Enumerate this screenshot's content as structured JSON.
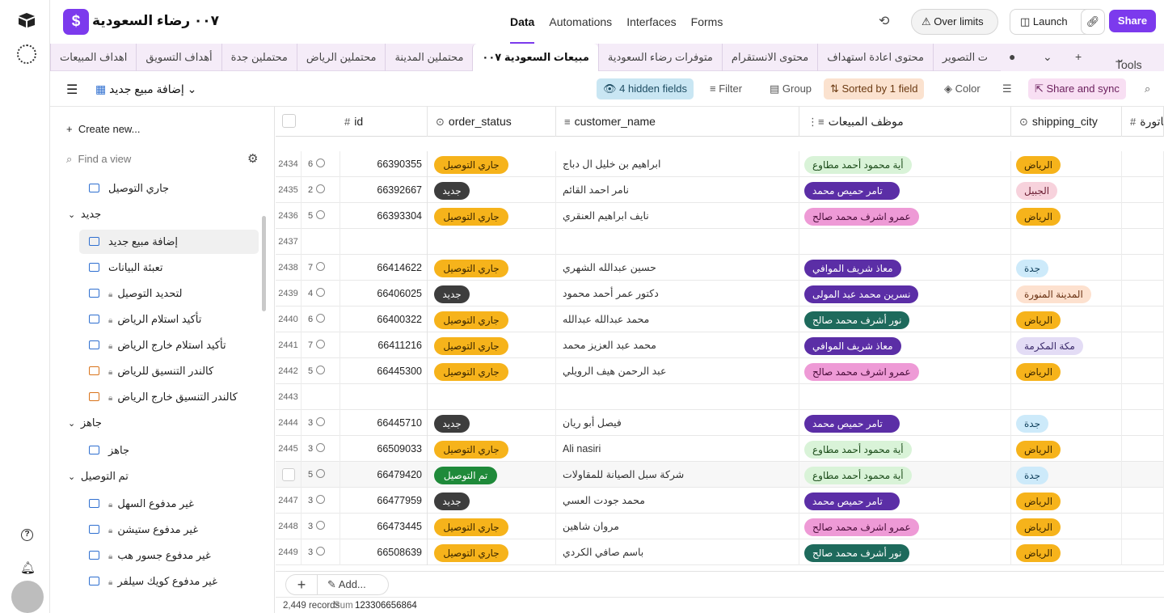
{
  "base": {
    "icon_glyph": "$",
    "title": "٠٠٧ رضاء السعودية"
  },
  "nav": [
    "Data",
    "Automations",
    "Interfaces",
    "Forms"
  ],
  "header": {
    "over_limits": "Over limits",
    "launch": "Launch",
    "share": "Share"
  },
  "tables": [
    "اهداف المبيعات",
    "أهداف التسويق",
    "محتملين جدة",
    "محتملين الرياض",
    "محتملين المدينة",
    "مبيعات السعودية ٠٠٧",
    "متوفرات رضاء السعودية",
    "محتوى الانستقرام",
    "محتوى اعادة استهداف",
    "شركات التصوير"
  ],
  "tools_label": "Tools",
  "toolbar": {
    "view_name": "إضافة مبيع جديد",
    "hidden_fields": "4 hidden fields",
    "filter": "Filter",
    "group": "Group",
    "sorted": "Sorted by 1 field",
    "color": "Color",
    "share_sync": "Share and sync"
  },
  "sidebar": {
    "create": "Create new...",
    "find": "Find a view",
    "items": [
      {
        "type": "view",
        "label": "جاري التوصيل",
        "locked": false,
        "icon": "grid-icon"
      },
      {
        "type": "group",
        "label": "جديد"
      },
      {
        "type": "view",
        "label": "إضافة مبيع جديد",
        "locked": false,
        "active": true,
        "icon": "grid-icon"
      },
      {
        "type": "view",
        "label": "تعبئة البيانات",
        "locked": false,
        "icon": "grid-icon"
      },
      {
        "type": "view",
        "label": "لتحديد التوصيل",
        "locked": true,
        "icon": "grid-icon"
      },
      {
        "type": "view",
        "label": "تأكيد استلام الرياض",
        "locked": true,
        "icon": "grid-icon"
      },
      {
        "type": "view",
        "label": "تأكيد استلام خارج الرياض",
        "locked": true,
        "icon": "grid-icon"
      },
      {
        "type": "view",
        "label": "كالندر التنسيق للرياض",
        "locked": true,
        "icon": "calendar-icon"
      },
      {
        "type": "view",
        "label": "كالندر التنسيق خارج الرياض",
        "locked": true,
        "icon": "calendar-icon"
      },
      {
        "type": "group",
        "label": "جاهز"
      },
      {
        "type": "view",
        "label": "جاهز",
        "locked": false,
        "icon": "grid-icon"
      },
      {
        "type": "group",
        "label": "تم التوصيل"
      },
      {
        "type": "view",
        "label": "غير مدفوع السهل",
        "locked": true,
        "icon": "grid-icon"
      },
      {
        "type": "view",
        "label": "غير مدفوع ستيشن",
        "locked": true,
        "icon": "grid-icon"
      },
      {
        "type": "view",
        "label": "غير مدفوع جسور هب",
        "locked": true,
        "icon": "grid-icon"
      },
      {
        "type": "view",
        "label": "غير مدفوع كويك سيلفر",
        "locked": true,
        "icon": "grid-icon"
      }
    ]
  },
  "columns": [
    {
      "name": "id",
      "icon": "#"
    },
    {
      "name": "order_status",
      "icon": "⊙"
    },
    {
      "name": "customer_name",
      "icon": "≡"
    },
    {
      "name": "موظف المبيعات",
      "icon": "⋮≡"
    },
    {
      "name": "shipping_city",
      "icon": "⊙"
    },
    {
      "name": "فاتورة",
      "icon": "#"
    }
  ],
  "status_styles": {
    "جاري التوصيل": "st-delivering",
    "جديد": "st-new",
    "تم التوصيل": "st-done"
  },
  "rows": [
    {
      "num": "2434",
      "count": "6",
      "id": "66390355",
      "status": "جاري التوصيل",
      "customer": "ابراهيم بن خليل ال دباج",
      "employee": "أية محمود أحمد مطاوع",
      "emp_color": "emp-lightgreen",
      "city": "الرياض",
      "city_color": "city-yellow"
    },
    {
      "num": "2435",
      "count": "2",
      "id": "66392667",
      "status": "جديد",
      "customer": "نامر احمد القائم",
      "employee": "تامر حميص محمد",
      "emp_color": "emp-purple",
      "city": "الجبيل",
      "city_color": "city-pink"
    },
    {
      "num": "2436",
      "count": "5",
      "id": "66393304",
      "status": "جاري التوصيل",
      "customer": "نايف ابراهيم العنقري",
      "employee": "عمرو اشرف محمد صالح",
      "emp_color": "emp-pink",
      "city": "الرياض",
      "city_color": "city-yellow"
    },
    {
      "num": "2437",
      "count": "",
      "id": "",
      "status": "",
      "customer": "",
      "employee": "",
      "emp_color": "",
      "city": "",
      "city_color": ""
    },
    {
      "num": "2438",
      "count": "7",
      "id": "66414622",
      "status": "جاري التوصيل",
      "customer": "حسين عبدالله الشهري",
      "employee": "معاذ شريف الموافي",
      "emp_color": "emp-purple",
      "city": "جدة",
      "city_color": "city-blue"
    },
    {
      "num": "2439",
      "count": "4",
      "id": "66406025",
      "status": "جديد",
      "customer": "دكتور عمر أحمد محمود",
      "employee": "نسرين محمد عبد المولى",
      "emp_color": "emp-purple",
      "city": "المدينة المنورة",
      "city_color": "city-peach"
    },
    {
      "num": "2440",
      "count": "6",
      "id": "66400322",
      "status": "جاري التوصيل",
      "customer": "محمد عبدالله عبدالله",
      "employee": "نور أشرف محمد صالح",
      "emp_color": "emp-teal",
      "city": "الرياض",
      "city_color": "city-yellow"
    },
    {
      "num": "2441",
      "count": "7",
      "id": "66411216",
      "status": "جاري التوصيل",
      "customer": "محمد عبد العزيز محمد",
      "employee": "معاذ شريف الموافي",
      "emp_color": "emp-purple",
      "city": "مكة المكرمة",
      "city_color": "city-lavender"
    },
    {
      "num": "2442",
      "count": "5",
      "id": "66445300",
      "status": "جاري التوصيل",
      "customer": "عبد الرحمن هيف الرويلي",
      "employee": "عمرو اشرف محمد صالح",
      "emp_color": "emp-pink",
      "city": "الرياض",
      "city_color": "city-yellow"
    },
    {
      "num": "2443",
      "count": "",
      "id": "",
      "status": "",
      "customer": "",
      "employee": "",
      "emp_color": "",
      "city": "",
      "city_color": ""
    },
    {
      "num": "2444",
      "count": "3",
      "id": "66445710",
      "status": "جديد",
      "customer": "فيصل أبو ريان",
      "employee": "تامر حميص محمد",
      "emp_color": "emp-purple",
      "city": "جدة",
      "city_color": "city-blue"
    },
    {
      "num": "2445",
      "count": "3",
      "id": "66509033",
      "status": "جاري التوصيل",
      "customer": "Ali nasiri",
      "employee": "أية محمود أحمد مطاوع",
      "emp_color": "emp-lightgreen",
      "city": "الرياض",
      "city_color": "city-yellow"
    },
    {
      "num": "",
      "count": "5",
      "id": "66479420",
      "status": "تم التوصيل",
      "customer": "شركة سبل الصيانة للمقاولات",
      "employee": "أية محمود أحمد مطاوع",
      "emp_color": "emp-lightgreen",
      "city": "جدة",
      "city_color": "city-blue",
      "highlight": true
    },
    {
      "num": "2447",
      "count": "3",
      "id": "66477959",
      "status": "جديد",
      "customer": "محمد جودت العسي",
      "employee": "تامر حميص محمد",
      "emp_color": "emp-purple",
      "city": "الرياض",
      "city_color": "city-yellow"
    },
    {
      "num": "2448",
      "count": "3",
      "id": "66473445",
      "status": "جاري التوصيل",
      "customer": "مروان شاهين",
      "employee": "عمرو اشرف محمد صالح",
      "emp_color": "emp-pink",
      "city": "الرياض",
      "city_color": "city-yellow"
    },
    {
      "num": "2449",
      "count": "3",
      "id": "66508639",
      "status": "جاري التوصيل",
      "customer": "باسم صافي الكردي",
      "employee": "نور أشرف محمد صالح",
      "emp_color": "emp-teal",
      "city": "الرياض",
      "city_color": "city-yellow"
    }
  ],
  "footer": {
    "add_label": "Add...",
    "records": "2,449 records",
    "sum_label": "Sum",
    "sum_value": "123306656864"
  },
  "colors": {
    "accent": "#7c3aed"
  }
}
